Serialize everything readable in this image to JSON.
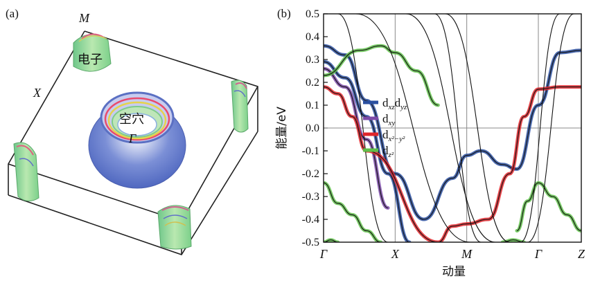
{
  "panel_a": {
    "label": "(a)",
    "points": {
      "M": "M",
      "X": "X",
      "Gamma": "Γ"
    },
    "electron_label": "电子",
    "hole_label": "空穴",
    "colors": {
      "hole_outer": "#6a80cf",
      "electron": "#8fd18f",
      "box": "#222222"
    }
  },
  "panel_b": {
    "label": "(b)"
  },
  "chart_data": {
    "type": "line",
    "title": "",
    "xlabel": "动量",
    "ylabel": "能量/eV",
    "ylim": [
      -0.5,
      0.5
    ],
    "yticks": [
      "0.5",
      "0.4",
      "0.3",
      "0.2",
      "0.1",
      "0.0",
      "-0.1",
      "-0.2",
      "-0.3",
      "-0.4",
      "-0.5"
    ],
    "xticks": [
      "Γ",
      "X",
      "M",
      "Γ",
      "Z"
    ],
    "k_positions": [
      0,
      1,
      2,
      3,
      3.6
    ],
    "fermi_level": 0.0,
    "legend": [
      {
        "main": "d",
        "sub": "xz",
        "main2": "d",
        "sub2": "yz",
        "color": "#2a4fa0"
      },
      {
        "main": "d",
        "sub": "xy",
        "main2": "",
        "sub2": "",
        "color": "#7b4aa8"
      },
      {
        "main": "d",
        "sub": "x²−y²",
        "main2": "",
        "sub2": "",
        "color": "#e0262b"
      },
      {
        "main": "d",
        "sub": "z²",
        "main2": "",
        "sub2": "",
        "color": "#5fbf4a"
      }
    ],
    "series": [
      {
        "name": "dxz/dyz band 1",
        "color": "#2a4fa0",
        "x": [
          0,
          0.3,
          0.6,
          1.0,
          1.4,
          1.8,
          2.0,
          2.2,
          2.5,
          2.7,
          3.0,
          3.3,
          3.6
        ],
        "y": [
          0.36,
          0.32,
          0.12,
          -0.2,
          -0.4,
          -0.22,
          -0.12,
          -0.1,
          -0.16,
          -0.18,
          0.1,
          0.33,
          0.34
        ]
      },
      {
        "name": "dxz/dyz band 2",
        "color": "#2a4fa0",
        "x": [
          0,
          0.3,
          0.6,
          0.9,
          1.2
        ],
        "y": [
          0.29,
          0.22,
          0.05,
          -0.2,
          -0.5
        ]
      },
      {
        "name": "dxy band",
        "color": "#7b4aa8",
        "x": [
          0,
          0.3,
          0.6,
          0.9
        ],
        "y": [
          0.26,
          0.18,
          -0.05,
          -0.35
        ]
      },
      {
        "name": "dx2-y2 band",
        "color": "#e0262b",
        "x": [
          0,
          0.2,
          0.4,
          0.6,
          1.6,
          1.8,
          2.0,
          2.3,
          2.6,
          2.8,
          3.0,
          3.3,
          3.6
        ],
        "y": [
          0.18,
          0.15,
          0.05,
          -0.1,
          -0.5,
          -0.43,
          -0.42,
          -0.4,
          -0.2,
          0.05,
          0.17,
          0.18,
          0.18
        ]
      },
      {
        "name": "dz2 band 1",
        "color": "#5fbf4a",
        "x": [
          0,
          0.5,
          0.8,
          1.0,
          1.3,
          1.6
        ],
        "y": [
          0.23,
          0.34,
          0.36,
          0.33,
          0.25,
          0.1
        ]
      },
      {
        "name": "dz2 band 2",
        "color": "#5fbf4a",
        "x": [
          0,
          0.2,
          0.4,
          0.6,
          0.8
        ],
        "y": [
          -0.24,
          -0.33,
          -0.38,
          -0.45,
          -0.5
        ]
      },
      {
        "name": "dz2 band 3",
        "color": "#5fbf4a",
        "x": [
          2.7,
          2.85,
          3.0,
          3.2,
          3.4,
          3.6
        ],
        "y": [
          -0.45,
          -0.32,
          -0.24,
          -0.3,
          -0.38,
          -0.45
        ]
      },
      {
        "name": "dz2 band 4",
        "color": "#5fbf4a",
        "x": [
          0,
          0.1,
          0.2
        ],
        "y": [
          -0.5,
          -0.49,
          -0.5
        ]
      },
      {
        "name": "dz2 band 5",
        "color": "#5fbf4a",
        "x": [
          2.5,
          2.65,
          2.8
        ],
        "y": [
          -0.5,
          -0.49,
          -0.5
        ]
      },
      {
        "name": "steep band 1",
        "color": "#111111",
        "x": [
          0.45,
          2.05
        ],
        "y": [
          0.5,
          -0.5
        ]
      },
      {
        "name": "steep band 2",
        "color": "#111111",
        "x": [
          1.55,
          2.2
        ],
        "y": [
          0.5,
          -0.5
        ]
      },
      {
        "name": "steep band 3",
        "color": "#111111",
        "x": [
          1.15,
          2.4
        ],
        "y": [
          0.5,
          -0.5
        ]
      },
      {
        "name": "steep band 4",
        "color": "#111111",
        "x": [
          1.7,
          2.6
        ],
        "y": [
          0.5,
          -0.5
        ]
      },
      {
        "name": "steep band 5",
        "color": "#111111",
        "x": [
          2.75,
          3.3
        ],
        "y": [
          -0.5,
          0.5
        ]
      },
      {
        "name": "steep band 6",
        "color": "#111111",
        "x": [
          2.85,
          3.5
        ],
        "y": [
          -0.5,
          0.5
        ]
      },
      {
        "name": "steep band 7",
        "color": "#111111",
        "x": [
          0.2,
          0.9
        ],
        "y": [
          0.5,
          -0.5
        ]
      }
    ]
  }
}
